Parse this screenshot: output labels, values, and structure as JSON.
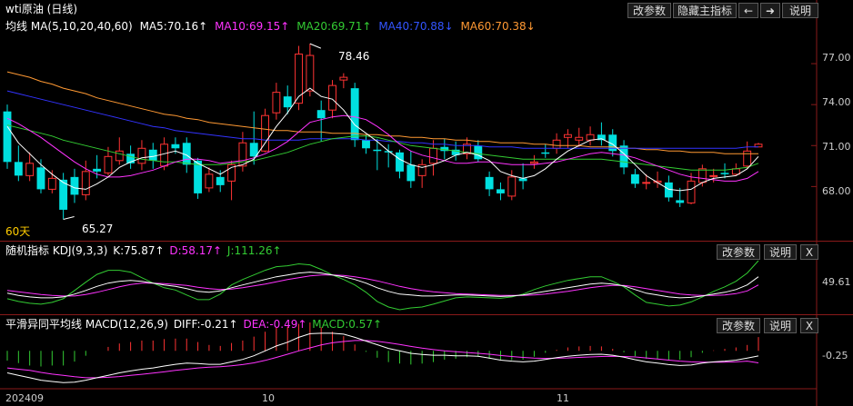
{
  "title": "wti原油 (日线)",
  "toolbar": {
    "adjust": "改参数",
    "hide_main": "隐藏主指标",
    "prev": "←",
    "next": "➜",
    "help": "说明"
  },
  "ma_legend": {
    "name": "均线",
    "params": "MA(5,10,20,40,60)",
    "ma5": "MA5:70.16↑",
    "ma10": "MA10:69.15↑",
    "ma20": "MA20:69.71↑",
    "ma40": "MA40:70.88↓",
    "ma60": "MA60:70.38↓"
  },
  "colors": {
    "up": "#ff3333",
    "down": "#00e0e0",
    "ma5": "#ffffff",
    "ma10": "#ff33ff",
    "ma20": "#33cc33",
    "ma40": "#3333ff",
    "ma60": "#ff9933",
    "bg": "#000000",
    "divider": "#8a1a1a"
  },
  "annotations": {
    "high": "78.46",
    "low": "65.27",
    "period": "60天"
  },
  "price_axis": [
    "77.00",
    "74.00",
    "71.00",
    "68.00"
  ],
  "kdj": {
    "name": "随机指标",
    "params": "KDJ(9,3,3)",
    "k": "K:75.87↑",
    "d": "D:58.17↑",
    "j": "J:111.26↑",
    "axis": "49.61",
    "adjust": "改参数",
    "help": "说明",
    "close": "X"
  },
  "macd": {
    "name": "平滑异同平均线",
    "params": "MACD(12,26,9)",
    "diff": "DIFF:-0.21↑",
    "dea": "DEA:-0.49↑",
    "macd": "MACD:0.57↑",
    "axis": "-0.25",
    "adjust": "改参数",
    "help": "说明",
    "close": "X"
  },
  "x_axis": [
    "202409",
    "10",
    "11"
  ],
  "chart_data": {
    "type": "candlestick",
    "ylim": [
      64.5,
      79
    ],
    "candles": [
      [
        73.5,
        69.8,
        74.0,
        69.3
      ],
      [
        69.8,
        68.8,
        71.0,
        68.4
      ],
      [
        68.8,
        69.7,
        70.5,
        68.4
      ],
      [
        69.4,
        67.8,
        70.0,
        67.5
      ],
      [
        67.8,
        68.6,
        69.2,
        67.5
      ],
      [
        68.5,
        66.3,
        69.0,
        65.6
      ],
      [
        68.7,
        67.4,
        69.3,
        66.8
      ],
      [
        67.4,
        69.1,
        69.9,
        67.0
      ],
      [
        69.3,
        69.1,
        70.3,
        68.6
      ],
      [
        69.0,
        70.2,
        70.9,
        68.8
      ],
      [
        69.9,
        70.6,
        71.6,
        69.6
      ],
      [
        70.4,
        69.7,
        71.0,
        69.3
      ],
      [
        69.7,
        70.8,
        71.4,
        69.2
      ],
      [
        70.7,
        69.9,
        71.2,
        69.3
      ],
      [
        69.5,
        71.1,
        71.6,
        69.2
      ],
      [
        71.1,
        70.8,
        71.6,
        70.4
      ],
      [
        71.2,
        69.6,
        71.6,
        69.0
      ],
      [
        69.9,
        67.5,
        70.1,
        67.1
      ],
      [
        67.9,
        68.9,
        69.4,
        67.6
      ],
      [
        68.7,
        68.1,
        69.2,
        67.6
      ],
      [
        68.4,
        69.6,
        69.9,
        67.0
      ],
      [
        69.5,
        71.2,
        72.0,
        69.1
      ],
      [
        71.2,
        70.2,
        73.5,
        69.6
      ],
      [
        70.6,
        73.2,
        73.7,
        70.5
      ],
      [
        73.4,
        74.9,
        75.6,
        72.9
      ],
      [
        74.6,
        73.8,
        75.4,
        73.3
      ],
      [
        74.1,
        77.7,
        78.3,
        73.6
      ],
      [
        75.0,
        77.6,
        78.46,
        74.6
      ],
      [
        73.6,
        73.0,
        74.3,
        71.3
      ],
      [
        73.6,
        75.4,
        75.8,
        73.0
      ],
      [
        75.8,
        76.0,
        76.3,
        75.2
      ],
      [
        75.2,
        71.4,
        75.6,
        70.9
      ],
      [
        71.4,
        70.8,
        71.8,
        70.4
      ],
      [
        70.7,
        70.6,
        71.5,
        69.2
      ],
      [
        70.6,
        70.5,
        71.1,
        69.4
      ],
      [
        70.5,
        69.1,
        70.7,
        68.6
      ],
      [
        69.6,
        68.4,
        70.6,
        67.9
      ],
      [
        68.8,
        69.6,
        70.0,
        67.9
      ],
      [
        69.7,
        70.8,
        71.4,
        68.8
      ],
      [
        70.9,
        70.6,
        71.5,
        70.0
      ],
      [
        70.7,
        70.3,
        71.3,
        69.9
      ],
      [
        70.4,
        71.1,
        71.6,
        70.0
      ],
      [
        71.0,
        70.0,
        71.4,
        69.8
      ],
      [
        68.7,
        67.8,
        69.1,
        67.3
      ],
      [
        67.8,
        67.5,
        68.3,
        67.0
      ],
      [
        67.3,
        68.7,
        69.2,
        67.0
      ],
      [
        68.6,
        68.4,
        69.7,
        67.8
      ],
      [
        69.7,
        69.8,
        70.3,
        69.3
      ],
      [
        70.5,
        70.4,
        71.1,
        70.1
      ],
      [
        70.8,
        71.4,
        71.9,
        70.4
      ],
      [
        71.6,
        71.8,
        72.2,
        70.8
      ],
      [
        71.4,
        71.6,
        72.3,
        70.9
      ],
      [
        71.4,
        71.8,
        72.4,
        71.0
      ],
      [
        71.8,
        71.4,
        72.7,
        71.0
      ],
      [
        71.8,
        70.6,
        72.2,
        70.2
      ],
      [
        71.0,
        69.4,
        71.4,
        68.9
      ],
      [
        68.9,
        68.2,
        69.3,
        67.9
      ],
      [
        68.3,
        68.3,
        68.9,
        67.8
      ],
      [
        68.3,
        68.4,
        69.1,
        67.9
      ],
      [
        68.3,
        67.2,
        68.8,
        66.9
      ],
      [
        67.0,
        66.8,
        67.9,
        66.5
      ],
      [
        66.8,
        68.4,
        69.0,
        66.7
      ],
      [
        68.3,
        69.3,
        69.6,
        68.0
      ],
      [
        68.8,
        68.8,
        69.3,
        68.3
      ],
      [
        69.0,
        68.9,
        69.7,
        68.6
      ],
      [
        68.9,
        69.3,
        69.7,
        68.8
      ],
      [
        69.5,
        70.6,
        71.3,
        69.3
      ],
      [
        70.9,
        71.1,
        71.2,
        70.9
      ]
    ],
    "ma5": [
      72.4,
      71.2,
      70.4,
      69.6,
      68.9,
      68.3,
      67.9,
      67.8,
      68.2,
      68.7,
      69.4,
      69.8,
      70.1,
      70.2,
      70.4,
      70.6,
      70.3,
      69.7,
      69.3,
      68.9,
      69.4,
      69.6,
      70.0,
      71.2,
      72.4,
      73.4,
      74.6,
      75.2,
      74.6,
      74.4,
      73.6,
      72.5,
      71.9,
      71.3,
      70.6,
      70.0,
      69.6,
      69.4,
      69.6,
      69.9,
      70.3,
      70.5,
      70.3,
      69.9,
      69.1,
      68.8,
      68.6,
      68.8,
      69.3,
      70.0,
      70.6,
      71.0,
      71.4,
      71.5,
      71.1,
      70.4,
      69.6,
      68.8,
      68.3,
      67.8,
      67.7,
      67.8,
      68.3,
      68.6,
      68.7,
      68.8,
      69.3,
      70.2
    ],
    "ma10": [
      73.0,
      72.6,
      72.1,
      71.6,
      71.0,
      70.4,
      69.8,
      69.3,
      68.9,
      68.7,
      68.7,
      68.8,
      69.0,
      69.2,
      69.5,
      69.8,
      70.0,
      70.0,
      69.9,
      69.7,
      69.8,
      69.9,
      70.1,
      70.4,
      70.8,
      71.3,
      72.0,
      72.7,
      72.9,
      73.1,
      73.2,
      73.1,
      72.9,
      72.4,
      71.8,
      71.1,
      70.6,
      70.3,
      70.1,
      69.9,
      69.7,
      69.7,
      69.8,
      69.8,
      69.7,
      69.6,
      69.6,
      69.6,
      69.7,
      69.8,
      70.0,
      70.2,
      70.4,
      70.5,
      70.4,
      70.3,
      70.1,
      69.8,
      69.5,
      69.2,
      68.9,
      68.7,
      68.6,
      68.5,
      68.4,
      68.4,
      68.6,
      69.1
    ],
    "ma20": [
      72.5,
      72.3,
      72.1,
      71.9,
      71.7,
      71.4,
      71.2,
      71.0,
      70.8,
      70.6,
      70.4,
      70.2,
      70.0,
      69.9,
      69.8,
      69.8,
      69.7,
      69.6,
      69.6,
      69.6,
      69.7,
      69.8,
      69.9,
      70.1,
      70.3,
      70.5,
      70.8,
      71.1,
      71.3,
      71.5,
      71.6,
      71.7,
      71.7,
      71.6,
      71.4,
      71.2,
      71.0,
      70.9,
      70.8,
      70.7,
      70.6,
      70.5,
      70.4,
      70.3,
      70.2,
      70.1,
      70.0,
      70.0,
      70.0,
      70.0,
      70.0,
      70.0,
      70.0,
      70.0,
      69.9,
      69.8,
      69.7,
      69.6,
      69.5,
      69.4,
      69.3,
      69.2,
      69.2,
      69.2,
      69.2,
      69.3,
      69.4,
      69.7
    ],
    "ma40": [
      75.0,
      74.8,
      74.6,
      74.4,
      74.2,
      74.0,
      73.8,
      73.6,
      73.4,
      73.2,
      73.0,
      72.8,
      72.6,
      72.4,
      72.3,
      72.1,
      72.0,
      71.9,
      71.8,
      71.7,
      71.6,
      71.5,
      71.5,
      71.4,
      71.4,
      71.4,
      71.4,
      71.5,
      71.5,
      71.5,
      71.5,
      71.5,
      71.4,
      71.4,
      71.3,
      71.3,
      71.2,
      71.2,
      71.1,
      71.1,
      71.0,
      71.0,
      71.0,
      70.9,
      70.9,
      70.9,
      70.8,
      70.8,
      70.8,
      70.8,
      70.8,
      70.8,
      70.8,
      70.8,
      70.8,
      70.8,
      70.8,
      70.8,
      70.8,
      70.8,
      70.8,
      70.8,
      70.8,
      70.8,
      70.8,
      70.8,
      70.9,
      70.9
    ],
    "ma60": [
      76.4,
      76.2,
      76.0,
      75.7,
      75.5,
      75.2,
      75.0,
      74.8,
      74.5,
      74.3,
      74.1,
      73.9,
      73.7,
      73.5,
      73.3,
      73.2,
      73.0,
      72.9,
      72.7,
      72.6,
      72.5,
      72.4,
      72.3,
      72.2,
      72.1,
      72.1,
      72.0,
      72.0,
      72.0,
      71.9,
      71.9,
      71.9,
      71.8,
      71.8,
      71.7,
      71.7,
      71.6,
      71.6,
      71.5,
      71.5,
      71.4,
      71.4,
      71.3,
      71.3,
      71.2,
      71.2,
      71.2,
      71.1,
      71.1,
      71.0,
      71.0,
      71.0,
      70.9,
      70.9,
      70.9,
      70.8,
      70.8,
      70.7,
      70.7,
      70.6,
      70.6,
      70.5,
      70.5,
      70.5,
      70.4,
      70.4,
      70.4,
      70.4
    ],
    "kdj_k": [
      40,
      35,
      32,
      30,
      30,
      32,
      38,
      46,
      55,
      62,
      66,
      68,
      66,
      62,
      58,
      55,
      50,
      44,
      42,
      45,
      52,
      58,
      64,
      70,
      76,
      80,
      84,
      86,
      84,
      80,
      76,
      70,
      62,
      52,
      44,
      38,
      36,
      34,
      34,
      35,
      36,
      36,
      35,
      34,
      33,
      34,
      36,
      40,
      44,
      48,
      52,
      56,
      60,
      62,
      60,
      56,
      48,
      40,
      36,
      32,
      30,
      31,
      34,
      38,
      42,
      48,
      58,
      76
    ],
    "kdj_d": [
      46,
      43,
      40,
      37,
      35,
      34,
      34,
      37,
      42,
      48,
      54,
      59,
      62,
      62,
      61,
      59,
      57,
      53,
      50,
      48,
      49,
      52,
      56,
      60,
      65,
      70,
      74,
      78,
      80,
      80,
      79,
      76,
      72,
      67,
      61,
      55,
      50,
      46,
      43,
      41,
      39,
      38,
      37,
      36,
      35,
      35,
      35,
      36,
      38,
      41,
      44,
      48,
      52,
      55,
      57,
      57,
      54,
      50,
      46,
      42,
      38,
      36,
      35,
      35,
      36,
      39,
      45,
      58
    ],
    "kdj_j": [
      28,
      22,
      18,
      16,
      20,
      28,
      46,
      64,
      81,
      90,
      90,
      86,
      74,
      62,
      52,
      47,
      36,
      26,
      26,
      38,
      58,
      70,
      80,
      90,
      98,
      100,
      104,
      102,
      92,
      80,
      70,
      58,
      42,
      22,
      10,
      4,
      8,
      10,
      16,
      23,
      30,
      32,
      31,
      30,
      29,
      32,
      38,
      48,
      56,
      62,
      68,
      72,
      76,
      76,
      66,
      54,
      36,
      20,
      16,
      12,
      14,
      21,
      32,
      44,
      54,
      66,
      84,
      111
    ],
    "macd_diff": [
      -0.9,
      -1.0,
      -1.1,
      -1.2,
      -1.25,
      -1.3,
      -1.28,
      -1.2,
      -1.1,
      -1.0,
      -0.9,
      -0.82,
      -0.75,
      -0.7,
      -0.62,
      -0.55,
      -0.5,
      -0.52,
      -0.55,
      -0.55,
      -0.45,
      -0.35,
      -0.2,
      0.0,
      0.2,
      0.35,
      0.55,
      0.7,
      0.72,
      0.72,
      0.68,
      0.55,
      0.4,
      0.25,
      0.1,
      0.0,
      -0.1,
      -0.15,
      -0.18,
      -0.18,
      -0.2,
      -0.2,
      -0.22,
      -0.3,
      -0.38,
      -0.42,
      -0.45,
      -0.42,
      -0.35,
      -0.28,
      -0.22,
      -0.18,
      -0.15,
      -0.14,
      -0.18,
      -0.26,
      -0.36,
      -0.45,
      -0.5,
      -0.56,
      -0.6,
      -0.58,
      -0.5,
      -0.45,
      -0.42,
      -0.38,
      -0.3,
      -0.21
    ],
    "macd_dea": [
      -0.7,
      -0.75,
      -0.8,
      -0.88,
      -0.95,
      -1.0,
      -1.06,
      -1.1,
      -1.1,
      -1.08,
      -1.05,
      -1.0,
      -0.96,
      -0.91,
      -0.86,
      -0.8,
      -0.75,
      -0.7,
      -0.67,
      -0.65,
      -0.61,
      -0.56,
      -0.49,
      -0.39,
      -0.27,
      -0.14,
      0.0,
      0.12,
      0.24,
      0.33,
      0.38,
      0.42,
      0.42,
      0.39,
      0.33,
      0.26,
      0.18,
      0.11,
      0.05,
      0.0,
      -0.04,
      -0.07,
      -0.1,
      -0.14,
      -0.19,
      -0.23,
      -0.27,
      -0.3,
      -0.31,
      -0.3,
      -0.29,
      -0.27,
      -0.25,
      -0.23,
      -0.22,
      -0.23,
      -0.25,
      -0.29,
      -0.33,
      -0.38,
      -0.42,
      -0.45,
      -0.46,
      -0.46,
      -0.46,
      -0.45,
      -0.42,
      -0.49
    ]
  }
}
